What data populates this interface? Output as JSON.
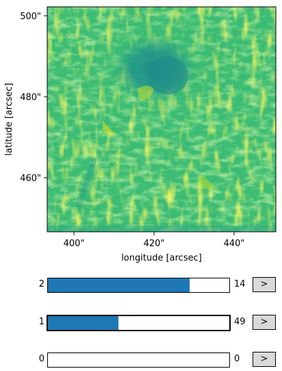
{
  "plot": {
    "xlabel": "longitude [arcsec]",
    "ylabel": "latitude [arcsec]",
    "x_ticks": [
      "400\"",
      "420\"",
      "440\""
    ],
    "y_ticks": [
      "500\"",
      "480\"",
      "460\""
    ],
    "colormap": "viridis"
  },
  "sliders": [
    {
      "min_label": "2",
      "value_label": "14",
      "fraction": 0.78,
      "active": false,
      "button": ">"
    },
    {
      "min_label": "1",
      "value_label": "49",
      "fraction": 0.39,
      "active": true,
      "button": ">"
    },
    {
      "min_label": "0",
      "value_label": "0",
      "fraction": 0.0,
      "active": false,
      "button": ">"
    }
  ]
}
